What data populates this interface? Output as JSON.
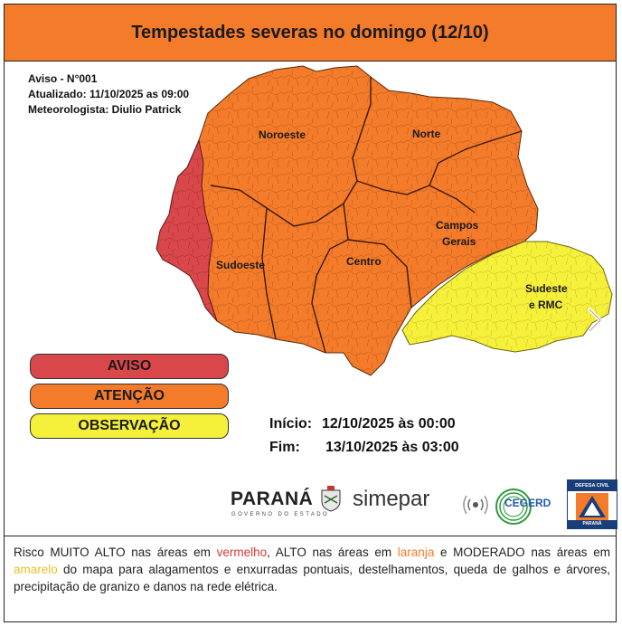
{
  "header": {
    "title": "Tempestades severas no domingo (12/10)"
  },
  "meta": {
    "aviso": "Aviso - N°001",
    "atualizado": "Atualizado: 11/10/2025 as 09:00",
    "meteorologista": "Meteorologista: Diulio Patrick"
  },
  "regions": {
    "noroeste": "Noroeste",
    "norte": "Norte",
    "campos_gerais_1": "Campos",
    "campos_gerais_2": "Gerais",
    "sudoeste": "Sudoeste",
    "centro": "Centro",
    "sudeste_1": "Sudeste",
    "sudeste_2": "e RMC"
  },
  "legend": [
    {
      "label": "AVISO",
      "color": "#d9474b"
    },
    {
      "label": "ATENÇÃO",
      "color": "#f47b2a"
    },
    {
      "label": "OBSERVAÇÃO",
      "color": "#f5f03a"
    }
  ],
  "colors": {
    "aviso": "#d9474b",
    "atencao": "#f47b2a",
    "observacao": "#f5f03a",
    "header": "#f47b2a"
  },
  "dates": {
    "inicio_label": "Início:",
    "inicio_value": "12/10/2025 às 00:00",
    "fim_label": "Fim:",
    "fim_value": "13/10/2025 às 03:00"
  },
  "logos": {
    "parana": "PARANÁ",
    "parana_sub": "GOVERNO DO ESTADO",
    "simepar": "simepar",
    "cegerd": "CEGERD",
    "defesa_top": "DEFESA CIVIL",
    "defesa_bot": "PARANÁ"
  },
  "footer": {
    "p1": "Risco MUITO ALTO nas áreas em ",
    "red": "vermelho",
    "p2": ", ALTO nas áreas em ",
    "orange": "laranja",
    "p3": " e MODERADO nas áreas em ",
    "yellow": "amarelo",
    "p4": " do mapa para alagamentos e enxurradas pontuais, destelhamentos, queda de galhos e árvores, precipitação de granizo e danos na rede elétrica."
  },
  "icons": {
    "next": "chevron-right-icon"
  }
}
